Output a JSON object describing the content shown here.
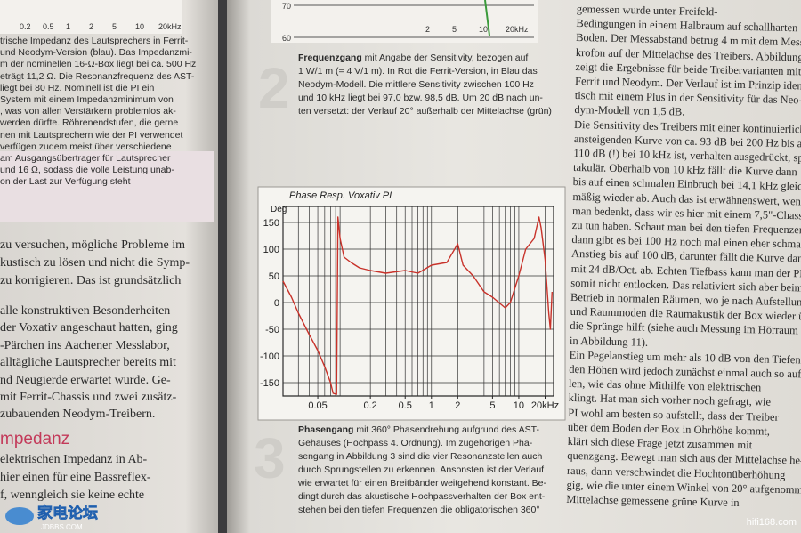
{
  "left_page": {
    "top_axis_labels": [
      "0.2",
      "0.5",
      "1",
      "2",
      "5",
      "10",
      "20kHz"
    ],
    "caption_lines": [
      "trische Impedanz des Lautsprechers in Ferrit-",
      "und Neodym-Version (blau). Das Impedanzmi-",
      "m der nominellen 16-Ω-Box liegt bei ca. 500 Hz",
      "eträgt 11,2 Ω. Die Resonanzfrequenz des AST-",
      "liegt bei 80 Hz. Nominell ist die PI ein",
      "System mit einem Impedanzminimum von",
      ", was von allen Verstärkern problemlos ak-",
      "werden dürfte. Röhrenendstufen, die gerne",
      "nen mit Lautsprechern wie der PI verwendet",
      "verfügen zudem meist über verschiedene",
      "am Ausgangsübertrager für Lautsprecher",
      "und 16 Ω, sodass die volle Leistung unab-",
      "on der Last zur Verfügung steht"
    ],
    "body_lines": [
      "zu versuchen, mögliche Probleme im",
      "kustisch zu lösen und nicht die Symp-",
      "zu korrigieren. Das ist grundsätzlich"
    ],
    "body_lines_2": [
      "alle konstruktiven Besonderheiten",
      "der Voxativ angeschaut hatten, ging",
      "-Pärchen ins Aachener Messlabor,",
      "alltägliche Lautsprecher bereits mit",
      "nd Neugierde erwartet wurde. Ge-",
      "mit Ferrit-Chassis und zwei zusätz-",
      "zubauenden Neodym-Treibern."
    ],
    "heading": "mpedanz",
    "body_lines_3": [
      "elektrischen Impedanz in Ab-",
      "hier einen für eine Bassreflex-",
      "f, wenngleich sie keine echte"
    ]
  },
  "figure_2": {
    "y_tick_labels": [
      "70",
      "60"
    ],
    "x_labels": [
      "2",
      "5",
      "10",
      "20kHz"
    ],
    "number": "2",
    "caption_lead": "Frequenzgang",
    "caption_lines": [
      " mit Angabe der Sensitivity, bezogen auf",
      "1 W/1 m (= 4 V/1 m). In Rot die Ferrit-Version, in Blau das",
      "Neodym-Modell. Die mittlere Sensitivity zwischen 100 Hz",
      "und 10 kHz liegt bei 97,0 bzw. 98,5 dB. Um 20 dB nach un-",
      "ten versetzt: der Verlauf 20° außerhalb der Mittelachse (grün)"
    ]
  },
  "chart_data": {
    "type": "line",
    "title": "Phase Resp. Voxativ PI",
    "y_label": "Deg",
    "log_x": true,
    "grid": true,
    "xlim": [
      0.02,
      25
    ],
    "ylim": [
      -175,
      180
    ],
    "xticks": [
      0.05,
      0.2,
      0.5,
      1,
      2,
      5,
      10,
      {
        "value": 20,
        "label": "20kHz"
      }
    ],
    "xgrid": [
      0.02,
      0.03,
      0.04,
      0.05,
      0.06,
      0.07,
      0.08,
      0.09,
      0.1,
      0.2,
      0.3,
      0.4,
      0.5,
      0.6,
      0.7,
      0.8,
      0.9,
      1,
      2,
      3,
      4,
      5,
      6,
      7,
      8,
      9,
      10,
      20
    ],
    "yticks": [
      150,
      100,
      50,
      0,
      -50,
      -100,
      -150
    ],
    "x": [
      0.02,
      0.025,
      0.03,
      0.04,
      0.05,
      0.06,
      0.07,
      0.075,
      0.082,
      0.085,
      0.09,
      0.1,
      0.12,
      0.15,
      0.2,
      0.3,
      0.5,
      0.7,
      1,
      1.5,
      2,
      2.3,
      3,
      4,
      5,
      7,
      8,
      10,
      12,
      15,
      17,
      18,
      20,
      22,
      23,
      24
    ],
    "series": [
      {
        "color": "#c8322a",
        "values": [
          40,
          10,
          -20,
          -60,
          -90,
          -120,
          -150,
          -170,
          -172,
          160,
          120,
          85,
          75,
          65,
          60,
          55,
          60,
          55,
          70,
          75,
          110,
          70,
          50,
          20,
          10,
          -10,
          0,
          50,
          100,
          120,
          160,
          140,
          80,
          -20,
          -50,
          20
        ]
      }
    ]
  },
  "figure_3": {
    "number": "3",
    "caption_lead": "Phasengang",
    "caption_lines": [
      " mit 360° Phasendrehung aufgrund des AST-",
      "Gehäuses (Hochpass 4. Ordnung). Im zugehörigen Pha-",
      "sengang in Abbildung 3 sind die vier Resonanzstellen auch",
      "durch Sprungstellen zu erkennen. Ansonsten ist der Verlauf",
      "wie erwartet für einen Breitbänder weitgehend konstant. Be-",
      "dingt durch das akustische Hochpassverhalten der Box ent-",
      "stehen bei den tiefen Frequenzen die obligatorischen 360°"
    ]
  },
  "right_page": {
    "lines": [
      "gemessen wurde unter Freifeld-",
      "Bedingungen in einem Halbraum auf schallharten",
      "Boden. Der Messabstand betrug 4 m mit dem Messmi-",
      "krofon auf der Mittelachse des Treibers. Abbildung 2",
      "zeigt die Ergebnisse für beide Treibervarianten mit",
      "Ferrit und Neodym. Der Verlauf ist im Prinzip iden-",
      "tisch mit einem Plus in der Sensitivity für das Neo-",
      "dym-Modell von 1,5 dB.",
      "Die Sensitivity des Treibers mit einer kontinuierlich",
      "ansteigenden Kurve von ca. 93 dB bei 200 Hz bis auf",
      "110 dB (!) bei 10 kHz ist, verhalten ausgedrückt, spek-",
      "takulär. Oberhalb von 10 kHz fällt die Kurve dann",
      "bis auf einen schmalen Einbruch bei 14,1 kHz gleich-",
      "mäßig wieder ab. Auch das ist erwähnenswert, wenn",
      "man bedenkt, dass wir es hier mit einem 7,5\"-Chassis",
      "zu tun haben. Schaut man bei den tiefen Frequenzen,",
      "dann gibt es bei 100 Hz noch mal einen eher schmalen",
      "Anstieg bis auf 100 dB, darunter fällt die Kurve dann",
      "mit 24 dB/Oct. ab. Echten Tiefbass kann man der PI",
      "somit nicht entlocken. Das relativiert sich aber beim",
      "Betrieb in normalen Räumen, wo je nach Aufstellung",
      "und Raummoden die Raumakustik der Box wieder über",
      "die Sprünge hilft (siehe auch Messung im Hörraum",
      "in Abbildung 11).",
      "Ein Pegelanstieg um mehr als 10 dB von den Tiefen zu",
      "den Höhen wird jedoch zunächst einmal auch so auffal-",
      "len, wie das ohne Mithilfe von elektrischen",
      "klingt. Hat man sich vorher noch gefragt, wie",
      "PI wohl am besten so aufstellt, dass der Treiber",
      "über dem Boden der Box in Ohrhöhe kommt,",
      "klärt sich diese Frage jetzt zusammen mit",
      "quenzgang. Bewegt man sich aus der Mittelachse he-",
      "raus, dann verschwindet die Hochtonüberhöhung",
      "gig, wie die unter einem Winkel von 20° aufgenommene",
      "Mittelachse gemessene grüne Kurve in"
    ]
  },
  "watermarks": {
    "logo": "家电论坛",
    "logo_sub": "JDBBS.COM",
    "site": "hifi168.com"
  }
}
